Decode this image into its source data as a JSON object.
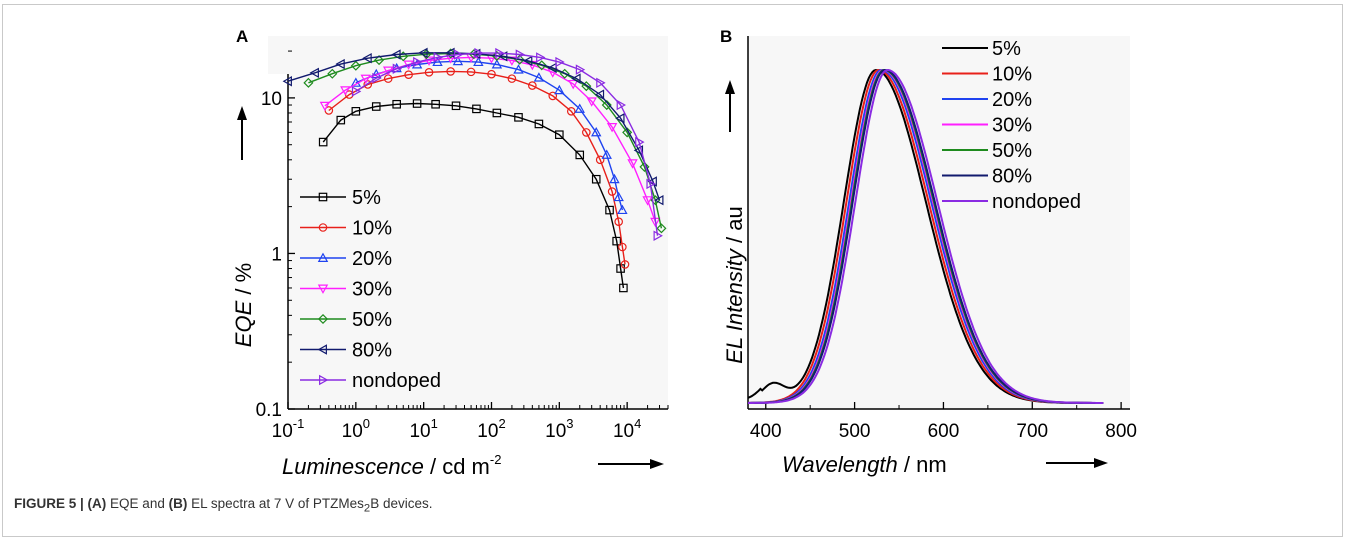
{
  "caption": {
    "label": "FIGURE 5 | ",
    "part_a_label": "(A)",
    "part_a_text": " EQE and ",
    "part_b_label": "(B)",
    "part_b_text": " EL spectra at 7 V of PTZMes",
    "subscript": "2",
    "suffix": "B devices."
  },
  "chart_data": [
    {
      "panel": "A",
      "type": "scatter",
      "xscale": "log",
      "yscale": "log",
      "xlim": [
        0.1,
        40000
      ],
      "ylim": [
        0.1,
        25
      ],
      "xticks": [
        0.1,
        1,
        10,
        100,
        1000,
        10000
      ],
      "xtick_labels": [
        "10-1",
        "100",
        "101",
        "102",
        "103",
        "104"
      ],
      "yticks": [
        0.1,
        1,
        10
      ],
      "ytick_labels": [
        "0.1",
        "1",
        "10"
      ],
      "xlabel_italic": "Luminescence",
      "xlabel_unit": " / cd m",
      "xlabel_sup": "-2",
      "ylabel_italic": "EQE",
      "ylabel_unit": " / %",
      "legend_position": "bottom-left",
      "series": [
        {
          "name": "5%",
          "color": "#000000",
          "marker": "square",
          "x": [
            0.33,
            0.6,
            1.0,
            2.0,
            4.0,
            8.0,
            15,
            30,
            60,
            120,
            250,
            500,
            1000,
            2000,
            3500,
            5500,
            7000,
            8000,
            8800
          ],
          "y": [
            5.2,
            7.2,
            8.2,
            8.8,
            9.1,
            9.2,
            9.1,
            8.9,
            8.5,
            8.0,
            7.5,
            6.8,
            5.8,
            4.3,
            3.0,
            1.9,
            1.2,
            0.8,
            0.6
          ]
        },
        {
          "name": "10%",
          "color": "#e8201a",
          "marker": "circle",
          "x": [
            0.4,
            0.8,
            1.5,
            3.0,
            6.0,
            12,
            25,
            50,
            100,
            200,
            400,
            800,
            1500,
            2500,
            4000,
            6000,
            7500,
            8500,
            9300
          ],
          "y": [
            8.3,
            10.5,
            12.2,
            13.3,
            14.1,
            14.6,
            14.8,
            14.7,
            14.2,
            13.3,
            12.0,
            10.3,
            8.2,
            6.0,
            4.0,
            2.5,
            1.6,
            1.1,
            0.85
          ]
        },
        {
          "name": "20%",
          "color": "#1f43f0",
          "marker": "triangle-up",
          "x": [
            1.0,
            2.0,
            4.0,
            8.0,
            16,
            32,
            64,
            120,
            250,
            500,
            1000,
            2000,
            3500,
            5000,
            6500,
            7500,
            8500
          ],
          "y": [
            12.5,
            14.2,
            15.5,
            16.4,
            17.0,
            17.2,
            17.0,
            16.4,
            15.2,
            13.5,
            11.2,
            8.5,
            6.0,
            4.3,
            3.0,
            2.3,
            1.9
          ]
        },
        {
          "name": "30%",
          "color": "#ff1fff",
          "marker": "triangle-down",
          "x": [
            0.35,
            0.7,
            1.4,
            3.0,
            6.0,
            12,
            25,
            50,
            100,
            200,
            400,
            800,
            1600,
            3000,
            6000,
            12000,
            20000,
            26000
          ],
          "y": [
            8.9,
            11.2,
            13.3,
            15.0,
            16.4,
            17.4,
            18.0,
            18.2,
            18.0,
            17.4,
            16.3,
            14.6,
            12.3,
            9.5,
            6.5,
            3.8,
            2.2,
            1.6
          ]
        },
        {
          "name": "50%",
          "color": "#1e8b1e",
          "marker": "diamond",
          "x": [
            0.2,
            0.45,
            1.0,
            2.2,
            5.0,
            11,
            25,
            55,
            120,
            260,
            550,
            1200,
            2500,
            5000,
            10000,
            18000,
            26000,
            32000
          ],
          "y": [
            12.5,
            14.3,
            16.1,
            17.5,
            18.5,
            19.1,
            19.3,
            19.1,
            18.6,
            17.6,
            16.2,
            14.3,
            11.9,
            9.0,
            6.0,
            3.6,
            2.2,
            1.45
          ]
        },
        {
          "name": "80%",
          "color": "#111a6e",
          "marker": "triangle-left",
          "x": [
            0.1,
            0.25,
            0.6,
            1.5,
            4.0,
            10,
            25,
            60,
            150,
            350,
            800,
            1800,
            4000,
            8000,
            15000,
            24000,
            30000
          ],
          "y": [
            12.8,
            14.5,
            16.5,
            18.0,
            19.0,
            19.5,
            19.5,
            19.2,
            18.5,
            17.3,
            15.6,
            13.3,
            10.5,
            7.4,
            4.6,
            2.9,
            2.2
          ]
        },
        {
          "name": "nondoped",
          "color": "#8a2be2",
          "marker": "triangle-right",
          "x": [
            1.0,
            2.0,
            4.0,
            8.0,
            16,
            32,
            64,
            130,
            260,
            520,
            1000,
            2000,
            4000,
            8000,
            15000,
            22000,
            28000
          ],
          "y": [
            11.0,
            13.4,
            15.4,
            17.0,
            18.2,
            19.0,
            19.4,
            19.4,
            19.0,
            18.2,
            17.0,
            15.2,
            12.5,
            9.0,
            5.2,
            2.8,
            1.3
          ]
        }
      ]
    },
    {
      "panel": "B",
      "type": "line",
      "xlim": [
        380,
        810
      ],
      "ylim": [
        0,
        1.12
      ],
      "xticks": [
        400,
        500,
        600,
        700,
        800
      ],
      "xtick_labels": [
        "400",
        "500",
        "600",
        "700",
        "800"
      ],
      "xlabel_italic": "Wavelength",
      "xlabel_unit": " / nm",
      "ylabel_italic": "EL Intensity",
      "ylabel_unit": " / au",
      "legend_position": "top-right",
      "series": [
        {
          "name": "5%",
          "color": "#000000",
          "peak": 524
        },
        {
          "name": "10%",
          "color": "#e8201a",
          "peak": 527
        },
        {
          "name": "20%",
          "color": "#1f43f0",
          "peak": 530
        },
        {
          "name": "30%",
          "color": "#ff1fff",
          "peak": 532
        },
        {
          "name": "50%",
          "color": "#1e8b1e",
          "peak": 533
        },
        {
          "name": "80%",
          "color": "#111a6e",
          "peak": 534
        },
        {
          "name": "nondoped",
          "color": "#8a2be2",
          "peak": 537
        }
      ]
    }
  ]
}
